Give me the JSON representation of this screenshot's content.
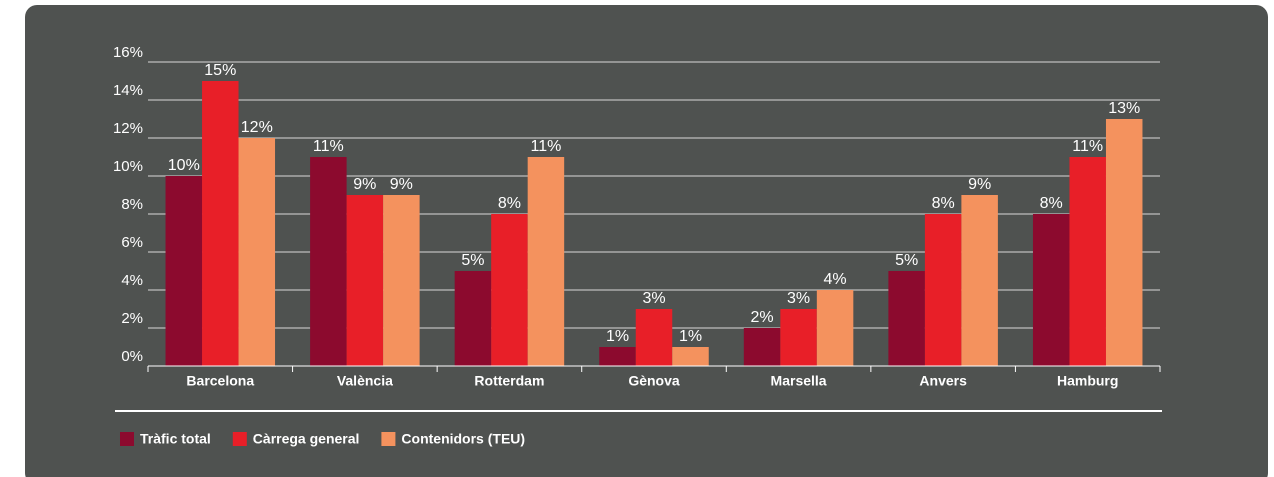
{
  "chart_data": {
    "type": "bar",
    "categories": [
      "Barcelona",
      "València",
      "Rotterdam",
      "Gènova",
      "Marsella",
      "Anvers",
      "Hamburg"
    ],
    "series": [
      {
        "name": "Tràfic total",
        "color": "#8c0a2e",
        "values": [
          10,
          11,
          5,
          1,
          2,
          5,
          8
        ],
        "value_labels": [
          "10%",
          "11%",
          "5%",
          "1%",
          "2%",
          "5%",
          "8%"
        ]
      },
      {
        "name": "Càrrega general",
        "color": "#e81f28",
        "values": [
          15,
          9,
          8,
          3,
          3,
          8,
          11
        ],
        "value_labels": [
          "15%",
          "9%",
          "8%",
          "3%",
          "3%",
          "8%",
          "11%"
        ]
      },
      {
        "name": "Contenidors (TEU)",
        "color": "#f4925e",
        "values": [
          12,
          9,
          11,
          1,
          4,
          9,
          13
        ],
        "value_labels": [
          "12%",
          "9%",
          "11%",
          "1%",
          "4%",
          "9%",
          "13%"
        ]
      }
    ],
    "ylim": [
      0,
      16
    ],
    "yticks": [
      {
        "value": 0,
        "label": "0%"
      },
      {
        "value": 2,
        "label": "2%"
      },
      {
        "value": 4,
        "label": "4%"
      },
      {
        "value": 6,
        "label": "6%"
      },
      {
        "value": 8,
        "label": "8%"
      },
      {
        "value": 10,
        "label": "10%"
      },
      {
        "value": 12,
        "label": "12%"
      },
      {
        "value": 14,
        "label": "14%"
      },
      {
        "value": 16,
        "label": "16%"
      }
    ],
    "grid": true,
    "legend": "bottom"
  }
}
